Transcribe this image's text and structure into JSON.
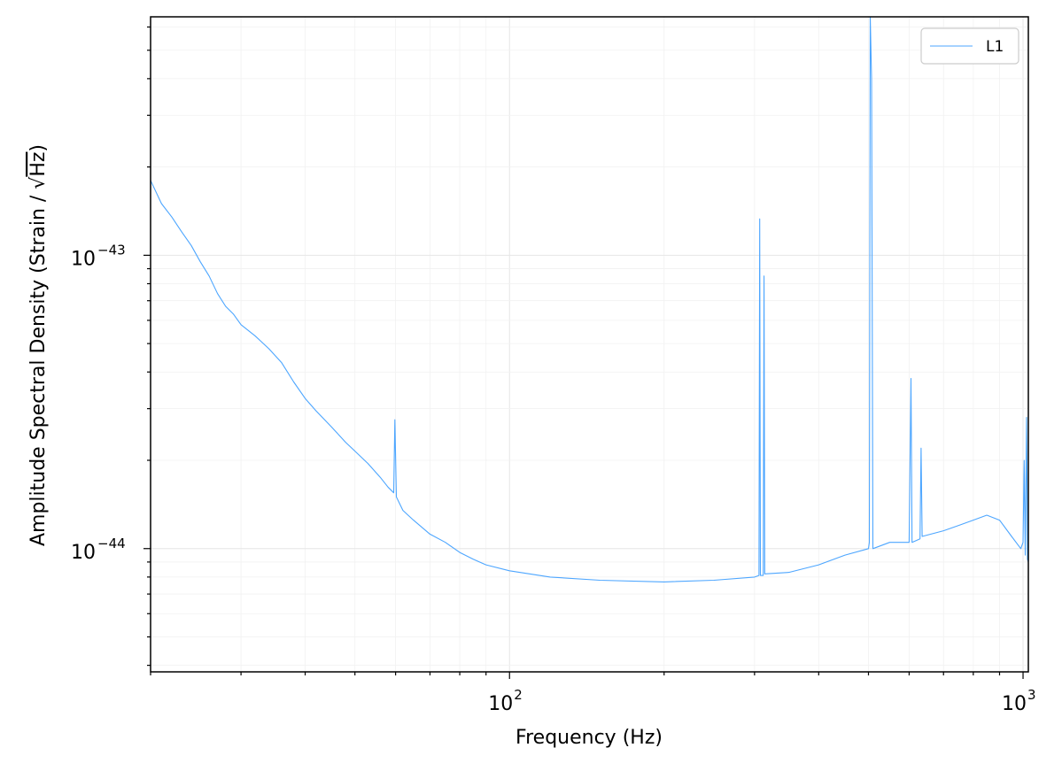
{
  "chart_data": {
    "type": "line",
    "title": "",
    "xlabel": "Frequency (Hz)",
    "ylabel_prefix": "Amplitude Spectral Density (Strain / ",
    "ylabel_root": "√",
    "ylabel_unit": "Hz",
    "ylabel_suffix": ")",
    "xscale": "log",
    "yscale": "log",
    "xlim": [
      20,
      1024
    ],
    "ylim": [
      3.8e-45,
      6.5e-43
    ],
    "grid": true,
    "legend_position": "upper right",
    "x_ticks": [
      {
        "base": "10",
        "exp": "2",
        "value": 100
      },
      {
        "base": "10",
        "exp": "3",
        "value": 1000
      }
    ],
    "y_ticks": [
      {
        "base": "10",
        "exp": "−43",
        "value": 1e-43
      },
      {
        "base": "10",
        "exp": "−44",
        "value": 1e-44
      }
    ],
    "series": [
      {
        "name": "L1",
        "color": "#4da6ff",
        "points": [
          [
            20,
            1.8e-43
          ],
          [
            21,
            1.5e-43
          ],
          [
            22,
            1.35e-43
          ],
          [
            23,
            1.2e-43
          ],
          [
            24,
            1.08e-43
          ],
          [
            25,
            9.5e-44
          ],
          [
            26,
            8.5e-44
          ],
          [
            27,
            7.4e-44
          ],
          [
            28,
            6.7e-44
          ],
          [
            29,
            6.3e-44
          ],
          [
            30,
            5.8e-44
          ],
          [
            32,
            5.3e-44
          ],
          [
            34,
            4.8e-44
          ],
          [
            36,
            4.3e-44
          ],
          [
            38,
            3.7e-44
          ],
          [
            40,
            3.25e-44
          ],
          [
            42,
            2.95e-44
          ],
          [
            45,
            2.6e-44
          ],
          [
            48,
            2.3e-44
          ],
          [
            50,
            2.15e-44
          ],
          [
            53,
            1.95e-44
          ],
          [
            56,
            1.75e-44
          ],
          [
            58,
            1.62e-44
          ],
          [
            59.5,
            1.55e-44
          ],
          [
            59.8,
            2.75e-44
          ],
          [
            60.2,
            1.5e-44
          ],
          [
            62,
            1.35e-44
          ],
          [
            65,
            1.25e-44
          ],
          [
            70,
            1.12e-44
          ],
          [
            75,
            1.05e-44
          ],
          [
            80,
            9.7e-45
          ],
          [
            85,
            9.2e-45
          ],
          [
            90,
            8.8e-45
          ],
          [
            100,
            8.4e-45
          ],
          [
            120,
            8e-45
          ],
          [
            150,
            7.8e-45
          ],
          [
            200,
            7.7e-45
          ],
          [
            250,
            7.8e-45
          ],
          [
            300,
            8e-45
          ],
          [
            306,
            8.1e-45
          ],
          [
            307,
            1.33e-43
          ],
          [
            308,
            8.1e-45
          ],
          [
            312,
            8.1e-45
          ],
          [
            313,
            8.5e-44
          ],
          [
            314,
            8.2e-45
          ],
          [
            350,
            8.3e-45
          ],
          [
            400,
            8.8e-45
          ],
          [
            450,
            9.5e-45
          ],
          [
            500,
            1e-44
          ],
          [
            502,
            1.05e-44
          ],
          [
            504,
            6.5e-43
          ],
          [
            507,
            4e-43
          ],
          [
            510,
            1e-44
          ],
          [
            550,
            1.05e-44
          ],
          [
            600,
            1.05e-44
          ],
          [
            605,
            3.8e-44
          ],
          [
            608,
            1.05e-44
          ],
          [
            630,
            1.08e-44
          ],
          [
            633,
            2.2e-44
          ],
          [
            636,
            1.1e-44
          ],
          [
            700,
            1.15e-44
          ],
          [
            750,
            1.2e-44
          ],
          [
            800,
            1.25e-44
          ],
          [
            850,
            1.3e-44
          ],
          [
            900,
            1.25e-44
          ],
          [
            950,
            1.1e-44
          ],
          [
            990,
            1e-44
          ],
          [
            1000,
            1.05e-44
          ],
          [
            1005,
            2e-44
          ],
          [
            1010,
            9.5e-45
          ],
          [
            1016,
            2.8e-44
          ],
          [
            1020,
            9.2e-45
          ],
          [
            1024,
            9e-45
          ]
        ]
      }
    ]
  }
}
